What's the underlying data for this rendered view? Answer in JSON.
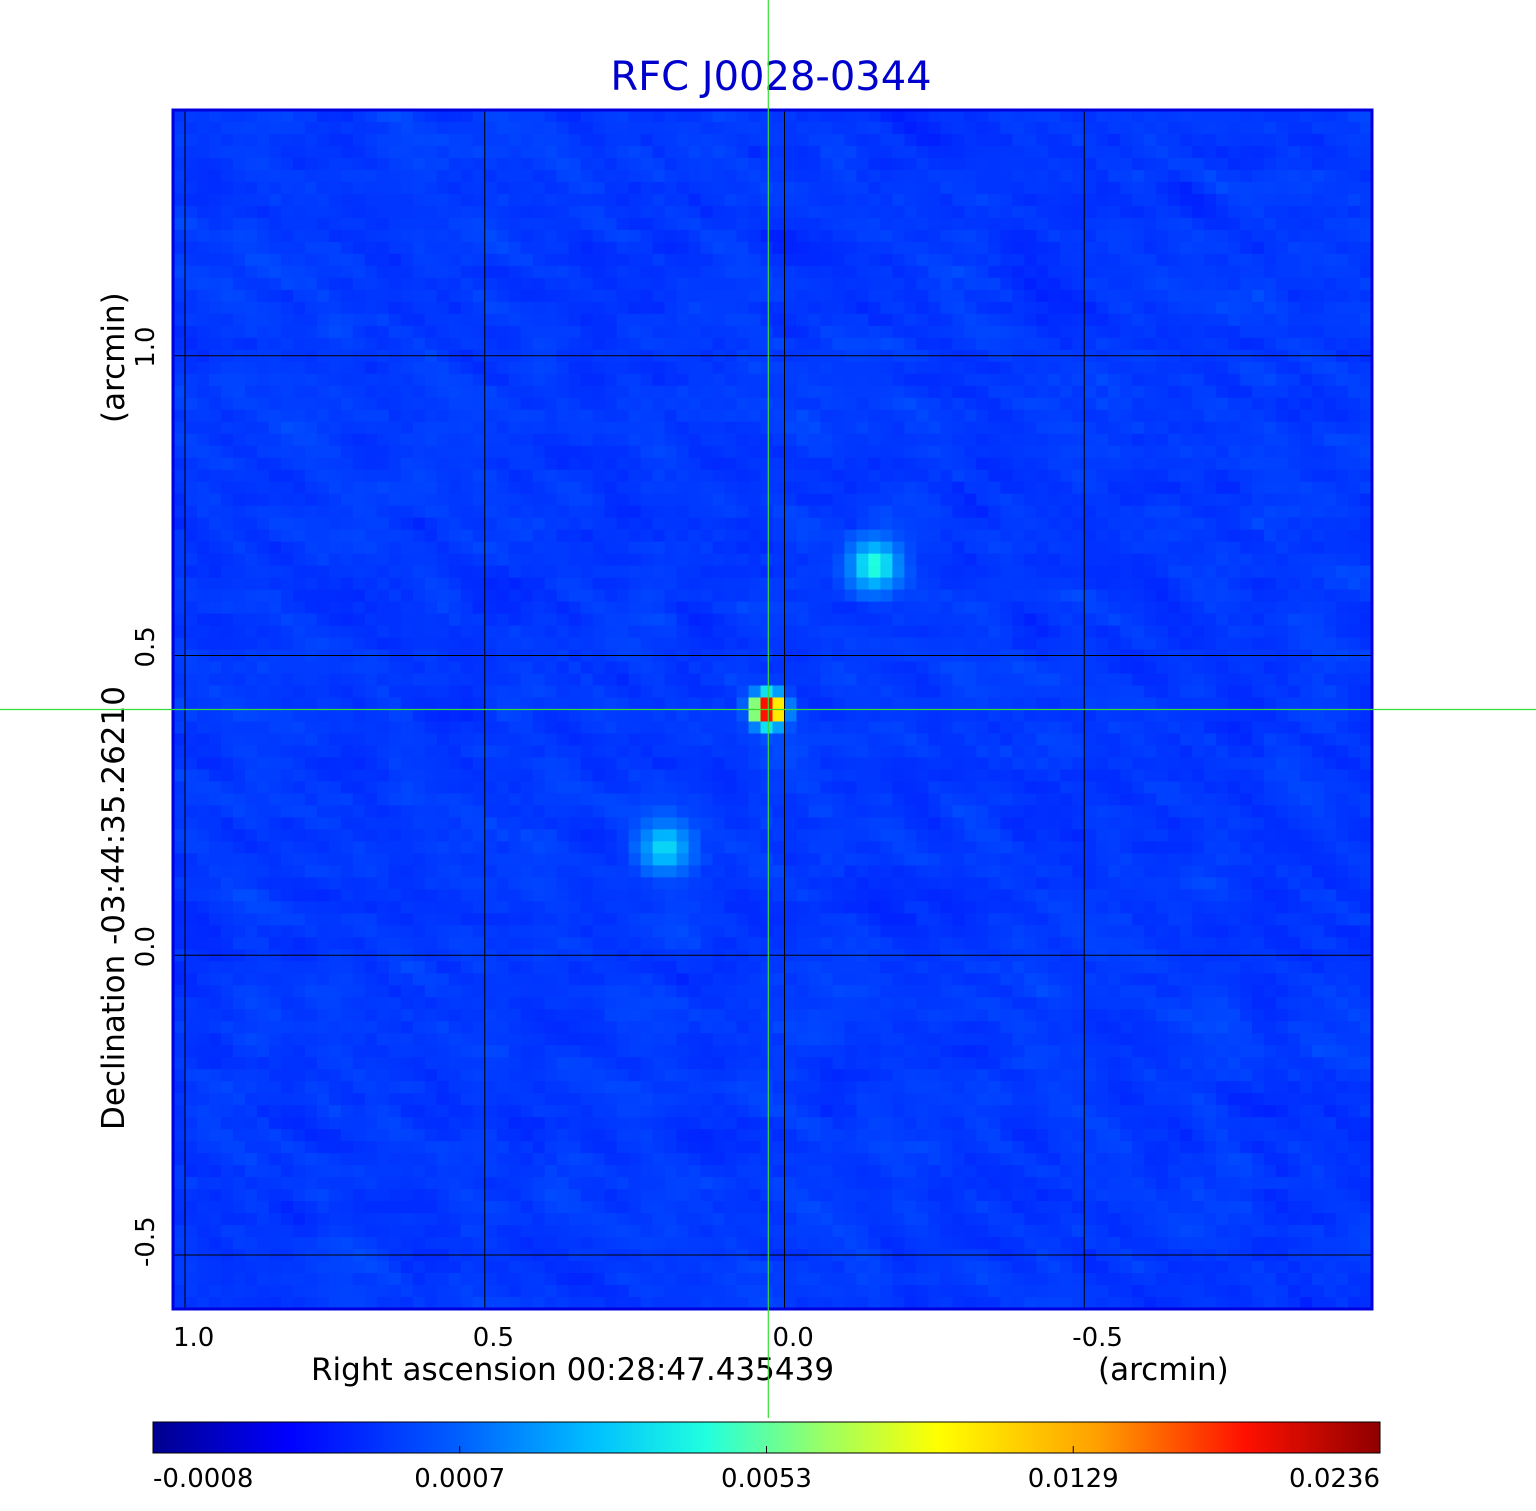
{
  "chart_data": {
    "type": "heatmap",
    "title": "RFC J0028-0344",
    "x_axis": {
      "label": "Right ascension  00:28:47.435439",
      "unit": "(arcmin)",
      "ticks": [
        1.0,
        0.5,
        0.0,
        -0.5
      ],
      "tick_labels": [
        "1.0",
        "0.5",
        "0.0",
        "-0.5"
      ],
      "range": [
        1.02,
        -0.98
      ],
      "reversed": true
    },
    "y_axis": {
      "label": "Declination  -03:44:35.26210",
      "unit": "(arcmin)",
      "ticks": [
        1.0,
        0.5,
        0.0,
        -0.5
      ],
      "tick_labels": [
        "1.0",
        "0.5",
        "0.0",
        "-0.5"
      ],
      "range": [
        -0.59,
        1.41
      ]
    },
    "grid": true,
    "crosshair": {
      "x": 0.027,
      "y": 0.41,
      "color": "#33dd33"
    },
    "colormap": "jet",
    "colorbar": {
      "position": "bottom",
      "tick_labels": [
        "-0.0008",
        "0.0007",
        "0.0053",
        "0.0129",
        "0.0236"
      ],
      "min": -0.0008,
      "max": 0.0236
    },
    "sources": [
      {
        "x": 0.027,
        "y": 0.41,
        "peak": 0.0236
      },
      {
        "x": -0.15,
        "y": 0.65,
        "peak": 0.0042
      },
      {
        "x": 0.2,
        "y": 0.18,
        "peak": 0.0032
      }
    ],
    "noise_level": 0.0002
  }
}
